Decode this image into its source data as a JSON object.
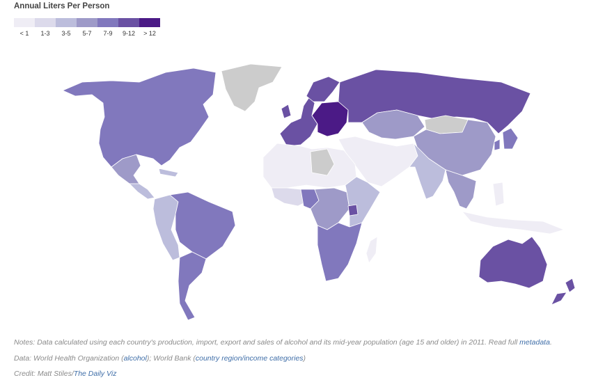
{
  "legend": {
    "title": "Annual Liters Per Person",
    "bins": [
      {
        "label": "< 1",
        "color": "#efedf5"
      },
      {
        "label": "1-3",
        "color": "#dcdaeb"
      },
      {
        "label": "3-5",
        "color": "#bcbddc"
      },
      {
        "label": "5-7",
        "color": "#9e9ac8"
      },
      {
        "label": "7-9",
        "color": "#8178bd"
      },
      {
        "label": "9-12",
        "color": "#6a51a3"
      },
      {
        "label": "> 12",
        "color": "#4b1a86"
      }
    ],
    "no_data_color": "#cccccc"
  },
  "regions": [
    {
      "name": "Greenland",
      "bin": "none"
    },
    {
      "name": "North America",
      "bin": "7-9"
    },
    {
      "name": "Mexico",
      "bin": "5-7"
    },
    {
      "name": "Central America",
      "bin": "3-5"
    },
    {
      "name": "Brazil",
      "bin": "7-9"
    },
    {
      "name": "Western South America",
      "bin": "3-5"
    },
    {
      "name": "Southern South America",
      "bin": "7-9"
    },
    {
      "name": "Western Europe",
      "bin": "9-12"
    },
    {
      "name": "Eastern Europe",
      "bin": "> 12"
    },
    {
      "name": "Russia",
      "bin": "9-12"
    },
    {
      "name": "Central Asia",
      "bin": "5-7"
    },
    {
      "name": "China",
      "bin": "5-7"
    },
    {
      "name": "Mongolia",
      "bin": "none"
    },
    {
      "name": "Middle East",
      "bin": "< 1"
    },
    {
      "name": "North Africa",
      "bin": "< 1"
    },
    {
      "name": "Libya",
      "bin": "none"
    },
    {
      "name": "West Africa",
      "bin": "1-3"
    },
    {
      "name": "Nigeria",
      "bin": "7-9"
    },
    {
      "name": "Central Africa",
      "bin": "5-7"
    },
    {
      "name": "East Africa",
      "bin": "3-5"
    },
    {
      "name": "Uganda",
      "bin": "9-12"
    },
    {
      "name": "Southern Africa",
      "bin": "7-9"
    },
    {
      "name": "Madagascar",
      "bin": "< 1"
    },
    {
      "name": "India",
      "bin": "3-5"
    },
    {
      "name": "Southeast Asia",
      "bin": "5-7"
    },
    {
      "name": "Indonesia",
      "bin": "< 1"
    },
    {
      "name": "Japan",
      "bin": "7-9"
    },
    {
      "name": "Australia",
      "bin": "9-12"
    },
    {
      "name": "New Zealand",
      "bin": "9-12"
    }
  ],
  "notes": {
    "line1_text": "Notes: Data calculated using each country's production, import, export and sales of alcohol and its mid-year population (age 15 and older) in 2011. Read full ",
    "line1_link": "metadata",
    "line1_end": ".",
    "line2_a": "Data: World Health Organization (",
    "line2_link1": "alcohol",
    "line2_b": "); World Bank (",
    "line2_link2": "country region/income categories",
    "line2_c": ")",
    "line3_a": "Credit: Matt Stiles/",
    "line3_link": "The Daily Viz"
  }
}
